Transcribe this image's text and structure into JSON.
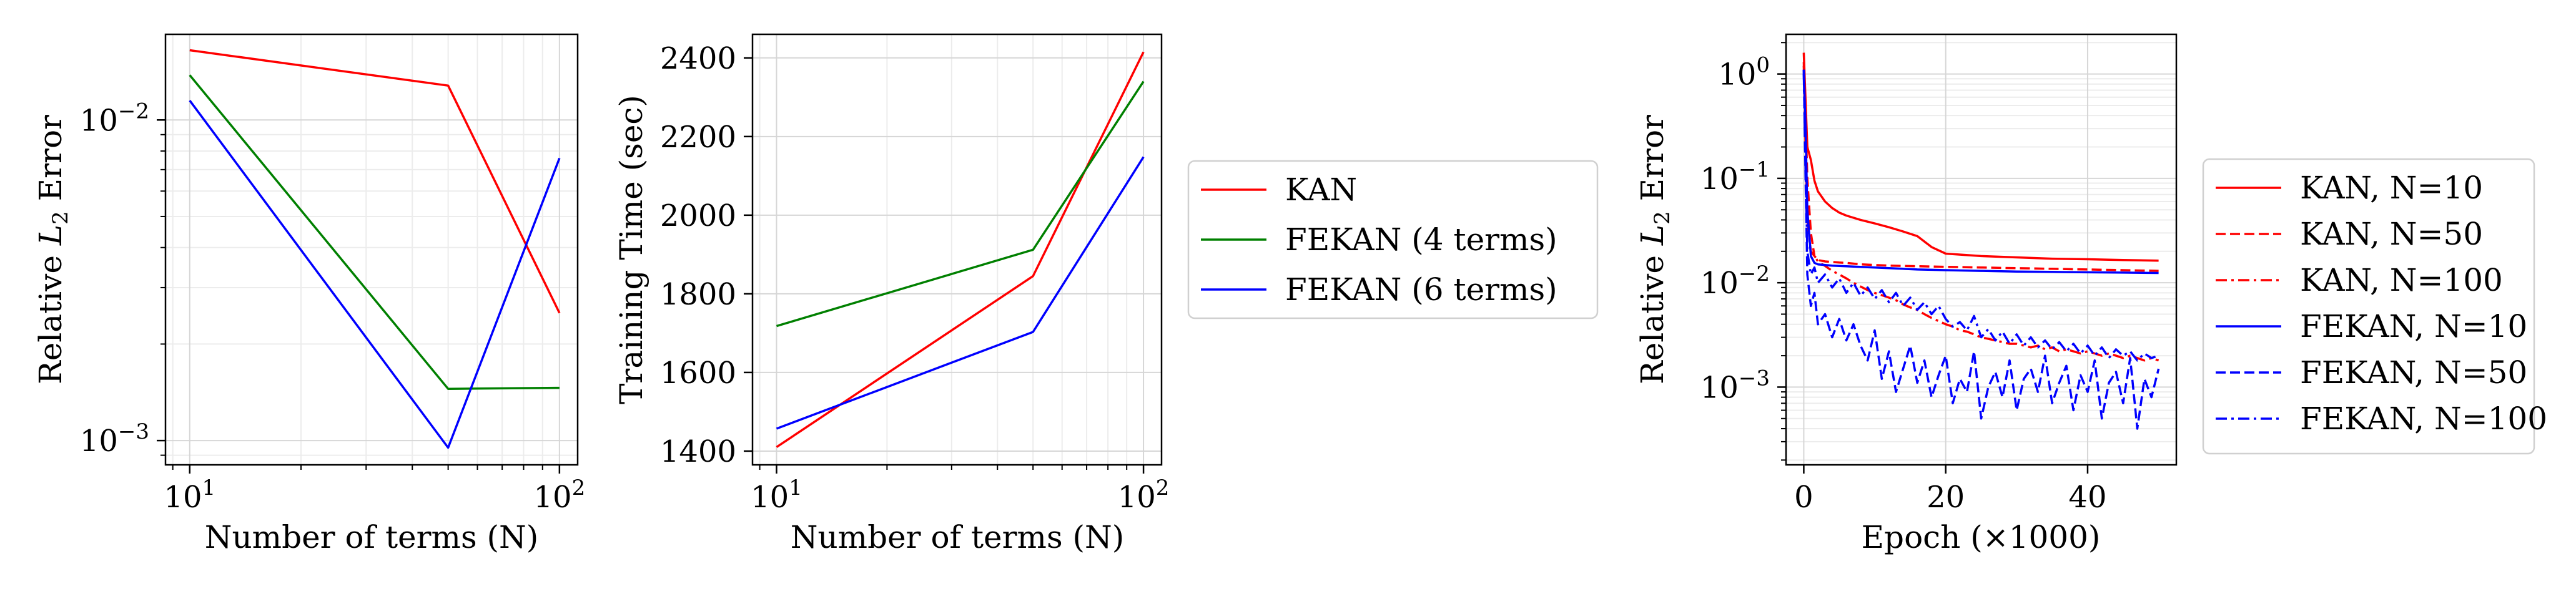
{
  "chart_data": [
    {
      "type": "line",
      "xscale": "log",
      "yscale": "log",
      "xlabel": "Number of terms (N)",
      "ylabel_pre": "Relative ",
      "ylabel_var": "L",
      "ylabel_sub": "2",
      "ylabel_post": " Error",
      "xlim": [
        8.6,
        112
      ],
      "ylim": [
        0.00084,
        0.0185
      ],
      "xticks": [
        {
          "value": 10,
          "base": "10",
          "exp": "1"
        },
        {
          "value": 100,
          "base": "10",
          "exp": "2"
        }
      ],
      "yticks": [
        {
          "value": 0.001,
          "base": "10",
          "exp": "−3"
        },
        {
          "value": 0.01,
          "base": "10",
          "exp": "−2"
        }
      ],
      "grid": true,
      "series": [
        {
          "color": "#ff0000",
          "x": [
            10,
            50,
            100
          ],
          "y": [
            0.0165,
            0.0128,
            0.0025
          ]
        },
        {
          "color": "#008000",
          "x": [
            10,
            50,
            100
          ],
          "y": [
            0.0138,
            0.00145,
            0.00146
          ]
        },
        {
          "color": "#0000ff",
          "x": [
            10,
            50,
            100
          ],
          "y": [
            0.0115,
            0.00095,
            0.0076
          ]
        }
      ]
    },
    {
      "type": "line",
      "xscale": "log",
      "yscale": "linear",
      "xlabel": "Number of terms (N)",
      "ylabel": "Training Time (sec)",
      "xlim": [
        8.6,
        112
      ],
      "ylim": [
        1365,
        2460
      ],
      "xticks": [
        {
          "value": 10,
          "base": "10",
          "exp": "1"
        },
        {
          "value": 100,
          "base": "10",
          "exp": "2"
        }
      ],
      "yticks": [
        {
          "value": 1400,
          "label": "1400"
        },
        {
          "value": 1600,
          "label": "1600"
        },
        {
          "value": 1800,
          "label": "1800"
        },
        {
          "value": 2000,
          "label": "2000"
        },
        {
          "value": 2200,
          "label": "2200"
        },
        {
          "value": 2400,
          "label": "2400"
        }
      ],
      "grid": true,
      "legend_position": "outside-right",
      "series": [
        {
          "name": "KAN",
          "color": "#ff0000",
          "x": [
            10,
            50,
            100
          ],
          "y": [
            1410,
            1845,
            2415
          ]
        },
        {
          "name": "FEKAN (4 terms)",
          "color": "#008000",
          "x": [
            10,
            50,
            100
          ],
          "y": [
            1718,
            1912,
            2340
          ]
        },
        {
          "name": "FEKAN (6 terms)",
          "color": "#0000ff",
          "x": [
            10,
            50,
            100
          ],
          "y": [
            1457,
            1703,
            2148
          ]
        }
      ]
    },
    {
      "type": "line",
      "xscale": "linear",
      "yscale": "log",
      "xlabel": "Epoch (×1000)",
      "ylabel_pre": "Relative ",
      "ylabel_var": "L",
      "ylabel_sub": "2",
      "ylabel_post": " Error",
      "xlim": [
        -2.5,
        52.5
      ],
      "ylim": [
        0.00018,
        2.4
      ],
      "xticks": [
        {
          "value": 0,
          "label": "0"
        },
        {
          "value": 20,
          "label": "20"
        },
        {
          "value": 40,
          "label": "40"
        }
      ],
      "yticks": [
        {
          "value": 0.001,
          "base": "10",
          "exp": "−3"
        },
        {
          "value": 0.01,
          "base": "10",
          "exp": "−2"
        },
        {
          "value": 0.1,
          "base": "10",
          "exp": "−1"
        },
        {
          "value": 1,
          "base": "10",
          "exp": "0"
        }
      ],
      "grid": true,
      "legend_position": "outside-right",
      "series": [
        {
          "name": "KAN, N=10",
          "color": "#ff0000",
          "dash": "solid",
          "x": [
            0,
            0.25,
            0.5,
            1,
            1.5,
            2,
            3,
            4,
            5,
            6,
            8,
            10,
            12,
            14,
            16,
            18,
            20,
            25,
            30,
            35,
            40,
            45,
            50
          ],
          "y": [
            1.6,
            0.55,
            0.2,
            0.15,
            0.095,
            0.075,
            0.06,
            0.052,
            0.047,
            0.044,
            0.04,
            0.037,
            0.034,
            0.031,
            0.028,
            0.022,
            0.019,
            0.018,
            0.0175,
            0.017,
            0.0168,
            0.0165,
            0.0163
          ]
        },
        {
          "name": "KAN, N=50",
          "color": "#ff0000",
          "dash": "dashed",
          "x": [
            0,
            0.25,
            0.5,
            1,
            1.5,
            2,
            3,
            4,
            5,
            6,
            8,
            10,
            12,
            14,
            16,
            18,
            20,
            25,
            30,
            35,
            40,
            45,
            50
          ],
          "y": [
            1.3,
            0.4,
            0.1,
            0.03,
            0.018,
            0.0165,
            0.016,
            0.0158,
            0.0156,
            0.0155,
            0.015,
            0.0148,
            0.0146,
            0.0145,
            0.0144,
            0.0143,
            0.0142,
            0.014,
            0.0138,
            0.0136,
            0.0134,
            0.0132,
            0.013
          ]
        },
        {
          "name": "KAN, N=100",
          "color": "#ff0000",
          "dash": "dashdot",
          "x": [
            0,
            0.25,
            0.5,
            1,
            1.5,
            2,
            3,
            4,
            5,
            6,
            7,
            8,
            9,
            10,
            11,
            12,
            13,
            14,
            15,
            16,
            17,
            18,
            19,
            20,
            21,
            22,
            23,
            24,
            25,
            26,
            27,
            28,
            29,
            30,
            31,
            32,
            33,
            34,
            35,
            36,
            37,
            38,
            39,
            40,
            41,
            42,
            43,
            44,
            45,
            46,
            47,
            48,
            49,
            50
          ],
          "y": [
            1.2,
            0.2,
            0.04,
            0.02,
            0.018,
            0.016,
            0.0145,
            0.013,
            0.012,
            0.011,
            0.01,
            0.0092,
            0.0085,
            0.008,
            0.0076,
            0.0072,
            0.0068,
            0.0062,
            0.0058,
            0.0055,
            0.005,
            0.0046,
            0.0043,
            0.004,
            0.0038,
            0.0035,
            0.0034,
            0.0032,
            0.003,
            0.0029,
            0.0028,
            0.0027,
            0.0026,
            0.0026,
            0.0025,
            0.0024,
            0.0025,
            0.0023,
            0.0024,
            0.0022,
            0.0023,
            0.0022,
            0.0021,
            0.0022,
            0.0021,
            0.002,
            0.0021,
            0.002,
            0.0019,
            0.002,
            0.0019,
            0.0018,
            0.0019,
            0.0018
          ]
        },
        {
          "name": "FEKAN, N=10",
          "color": "#0000ff",
          "dash": "solid",
          "x": [
            0,
            0.25,
            0.5,
            1,
            1.5,
            2,
            3,
            4,
            5,
            6,
            8,
            10,
            12,
            14,
            16,
            18,
            20,
            25,
            30,
            35,
            40,
            45,
            50
          ],
          "y": [
            1.1,
            0.3,
            0.05,
            0.018,
            0.0155,
            0.015,
            0.0148,
            0.0146,
            0.0145,
            0.0144,
            0.0142,
            0.014,
            0.0138,
            0.0136,
            0.0134,
            0.0133,
            0.0132,
            0.013,
            0.0128,
            0.0127,
            0.0126,
            0.0125,
            0.0124
          ]
        },
        {
          "name": "FEKAN, N=50",
          "color": "#0000ff",
          "dash": "dashed",
          "x": [
            0,
            0.25,
            0.5,
            1,
            1.5,
            2,
            3,
            4,
            5,
            6,
            7,
            8,
            9,
            10,
            11,
            12,
            13,
            14,
            15,
            16,
            17,
            18,
            19,
            20,
            21,
            22,
            23,
            24,
            25,
            26,
            27,
            28,
            29,
            30,
            31,
            32,
            33,
            34,
            35,
            36,
            37,
            38,
            39,
            40,
            41,
            42,
            43,
            44,
            45,
            46,
            47,
            48,
            49,
            50
          ],
          "y": [
            1.1,
            0.1,
            0.012,
            0.006,
            0.008,
            0.004,
            0.005,
            0.003,
            0.0045,
            0.0028,
            0.004,
            0.0025,
            0.0018,
            0.0035,
            0.0012,
            0.0022,
            0.0009,
            0.0015,
            0.0025,
            0.0011,
            0.0018,
            0.0008,
            0.0013,
            0.002,
            0.0007,
            0.0012,
            0.0009,
            0.0022,
            0.0005,
            0.001,
            0.0014,
            0.0008,
            0.0018,
            0.0006,
            0.0012,
            0.0015,
            0.0009,
            0.002,
            0.0007,
            0.0011,
            0.0016,
            0.0006,
            0.0013,
            0.0009,
            0.0018,
            0.0005,
            0.0011,
            0.0014,
            0.0007,
            0.0019,
            0.0004,
            0.0012,
            0.0008,
            0.0015
          ]
        },
        {
          "name": "FEKAN, N=100",
          "color": "#0000ff",
          "dash": "dashdot",
          "x": [
            0,
            0.25,
            0.5,
            1,
            1.5,
            2,
            3,
            4,
            5,
            6,
            7,
            8,
            9,
            10,
            11,
            12,
            13,
            14,
            15,
            16,
            17,
            18,
            19,
            20,
            21,
            22,
            23,
            24,
            25,
            26,
            27,
            28,
            29,
            30,
            31,
            32,
            33,
            34,
            35,
            36,
            37,
            38,
            39,
            40,
            41,
            42,
            43,
            44,
            45,
            46,
            47,
            48,
            49,
            50
          ],
          "y": [
            1.0,
            0.12,
            0.02,
            0.012,
            0.014,
            0.01,
            0.012,
            0.009,
            0.011,
            0.008,
            0.01,
            0.0075,
            0.009,
            0.007,
            0.0085,
            0.0065,
            0.008,
            0.006,
            0.0072,
            0.0055,
            0.0065,
            0.005,
            0.006,
            0.0045,
            0.0038,
            0.0042,
            0.0035,
            0.0048,
            0.003,
            0.0036,
            0.0028,
            0.0034,
            0.0026,
            0.0032,
            0.0025,
            0.003,
            0.0024,
            0.0028,
            0.0023,
            0.0027,
            0.0022,
            0.0026,
            0.0021,
            0.0025,
            0.002,
            0.0024,
            0.0019,
            0.0023,
            0.002,
            0.0022,
            0.0018,
            0.0021,
            0.0019,
            0.002
          ]
        }
      ]
    }
  ]
}
